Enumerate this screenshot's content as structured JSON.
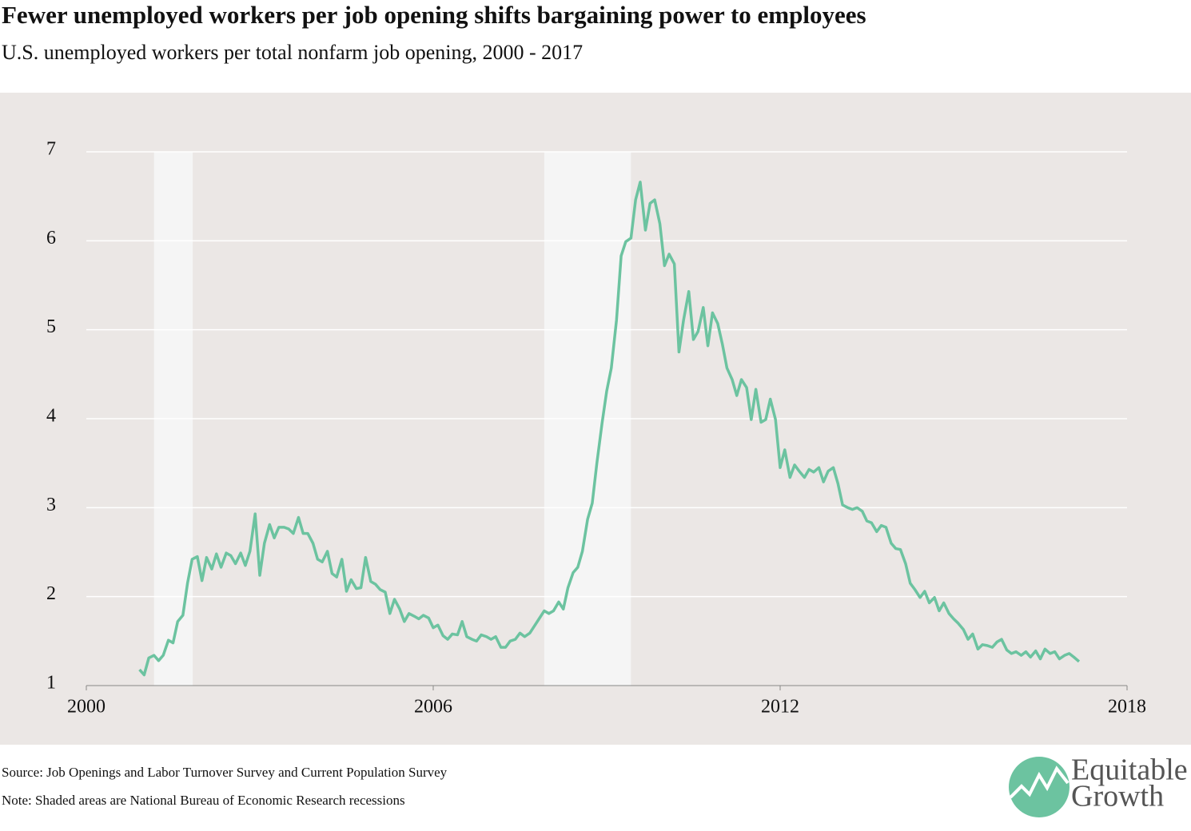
{
  "chart_data": {
    "type": "line",
    "title": "Fewer unemployed workers per job opening shifts bargaining power to employees",
    "subtitle": "U.S. unemployed workers per total nonfarm job opening, 2000 - 2017",
    "source": "Source: Job Openings and Labor Turnover Survey and Current Population Survey",
    "note": "Note: Shaded areas are National Bureau of Economic Research recessions",
    "logo": [
      "Equitable",
      "Growth"
    ],
    "xlim": [
      2000,
      2018
    ],
    "xticks": [
      2000,
      2006,
      2012,
      2018
    ],
    "ylim": [
      1,
      7
    ],
    "yticks": [
      1,
      2,
      3,
      4,
      5,
      6,
      7
    ],
    "grid": true,
    "recessions": [
      [
        2001.17,
        2001.84
      ],
      [
        2007.92,
        2009.42
      ]
    ],
    "recession_color": "#f5f5f5",
    "x": [
      2000.92,
      2001.0,
      2001.08,
      2001.17,
      2001.25,
      2001.33,
      2001.42,
      2001.5,
      2001.58,
      2001.67,
      2001.75,
      2001.83,
      2001.92,
      2002.0,
      2002.08,
      2002.17,
      2002.25,
      2002.33,
      2002.42,
      2002.5,
      2002.58,
      2002.67,
      2002.75,
      2002.83,
      2002.92,
      2003.0,
      2003.08,
      2003.17,
      2003.25,
      2003.33,
      2003.42,
      2003.5,
      2003.58,
      2003.67,
      2003.75,
      2003.83,
      2003.92,
      2004.0,
      2004.08,
      2004.17,
      2004.25,
      2004.33,
      2004.42,
      2004.5,
      2004.58,
      2004.67,
      2004.75,
      2004.83,
      2004.92,
      2005.0,
      2005.08,
      2005.17,
      2005.25,
      2005.33,
      2005.42,
      2005.5,
      2005.58,
      2005.67,
      2005.75,
      2005.83,
      2005.92,
      2006.0,
      2006.08,
      2006.17,
      2006.25,
      2006.33,
      2006.42,
      2006.5,
      2006.58,
      2006.67,
      2006.75,
      2006.83,
      2006.92,
      2007.0,
      2007.08,
      2007.17,
      2007.25,
      2007.33,
      2007.42,
      2007.5,
      2007.58,
      2007.67,
      2007.75,
      2007.83,
      2007.92,
      2008.0,
      2008.08,
      2008.17,
      2008.25,
      2008.33,
      2008.42,
      2008.5,
      2008.58,
      2008.67,
      2008.75,
      2008.83,
      2008.92,
      2009.0,
      2009.08,
      2009.17,
      2009.25,
      2009.33,
      2009.42,
      2009.5,
      2009.58,
      2009.67,
      2009.75,
      2009.83,
      2009.92,
      2010.0,
      2010.08,
      2010.17,
      2010.25,
      2010.33,
      2010.42,
      2010.5,
      2010.58,
      2010.67,
      2010.75,
      2010.83,
      2010.92,
      2011.0,
      2011.08,
      2011.17,
      2011.25,
      2011.33,
      2011.42,
      2011.5,
      2011.58,
      2011.67,
      2011.75,
      2011.83,
      2011.92,
      2012.0,
      2012.08,
      2012.17,
      2012.25,
      2012.33,
      2012.42,
      2012.5,
      2012.58,
      2012.67,
      2012.75,
      2012.83,
      2012.92,
      2013.0,
      2013.08,
      2013.17,
      2013.25,
      2013.33,
      2013.42,
      2013.5,
      2013.58,
      2013.67,
      2013.75,
      2013.83,
      2013.92,
      2014.0,
      2014.08,
      2014.17,
      2014.25,
      2014.33,
      2014.42,
      2014.5,
      2014.58,
      2014.67,
      2014.75,
      2014.83,
      2014.92,
      2015.0,
      2015.08,
      2015.17,
      2015.25,
      2015.33,
      2015.42,
      2015.5,
      2015.58,
      2015.67,
      2015.75,
      2015.83,
      2015.92,
      2016.0,
      2016.08,
      2016.17,
      2016.25,
      2016.33,
      2016.42,
      2016.5,
      2016.58,
      2016.67,
      2016.75,
      2016.83,
      2016.92,
      2017.0,
      2017.08,
      2017.17
    ],
    "series": [
      {
        "name": "Unemployed workers per job opening",
        "color": "#6cc3a0",
        "values": [
          1.18,
          1.12,
          1.31,
          1.34,
          1.28,
          1.34,
          1.51,
          1.48,
          1.72,
          1.79,
          2.15,
          2.42,
          2.45,
          2.18,
          2.44,
          2.31,
          2.48,
          2.33,
          2.49,
          2.46,
          2.37,
          2.49,
          2.35,
          2.51,
          2.93,
          2.24,
          2.6,
          2.81,
          2.66,
          2.78,
          2.78,
          2.76,
          2.71,
          2.89,
          2.71,
          2.71,
          2.6,
          2.42,
          2.39,
          2.51,
          2.26,
          2.22,
          2.42,
          2.06,
          2.19,
          2.09,
          2.1,
          2.44,
          2.17,
          2.14,
          2.08,
          2.05,
          1.81,
          1.97,
          1.86,
          1.72,
          1.81,
          1.78,
          1.75,
          1.79,
          1.76,
          1.65,
          1.68,
          1.56,
          1.52,
          1.58,
          1.57,
          1.72,
          1.55,
          1.52,
          1.5,
          1.57,
          1.55,
          1.52,
          1.55,
          1.43,
          1.43,
          1.5,
          1.52,
          1.59,
          1.55,
          1.59,
          1.67,
          1.75,
          1.84,
          1.81,
          1.84,
          1.94,
          1.86,
          2.1,
          2.27,
          2.33,
          2.51,
          2.87,
          3.05,
          3.5,
          3.95,
          4.31,
          4.57,
          5.11,
          5.83,
          5.99,
          6.03,
          6.46,
          6.66,
          6.12,
          6.42,
          6.46,
          6.19,
          5.72,
          5.85,
          5.74,
          4.75,
          5.11,
          5.43,
          4.89,
          4.98,
          5.25,
          4.82,
          5.19,
          5.07,
          4.84,
          4.57,
          4.44,
          4.26,
          4.44,
          4.35,
          3.99,
          4.33,
          3.96,
          3.99,
          4.22,
          3.99,
          3.45,
          3.65,
          3.34,
          3.48,
          3.41,
          3.34,
          3.43,
          3.4,
          3.45,
          3.29,
          3.41,
          3.45,
          3.27,
          3.03,
          3.0,
          2.98,
          3.0,
          2.96,
          2.85,
          2.83,
          2.73,
          2.8,
          2.78,
          2.6,
          2.54,
          2.53,
          2.37,
          2.15,
          2.08,
          1.99,
          2.06,
          1.93,
          1.99,
          1.84,
          1.93,
          1.81,
          1.75,
          1.7,
          1.63,
          1.52,
          1.58,
          1.41,
          1.46,
          1.45,
          1.43,
          1.49,
          1.52,
          1.4,
          1.36,
          1.38,
          1.34,
          1.38,
          1.32,
          1.39,
          1.3,
          1.41,
          1.36,
          1.38,
          1.3,
          1.34,
          1.36,
          1.32,
          1.27
        ]
      }
    ]
  }
}
